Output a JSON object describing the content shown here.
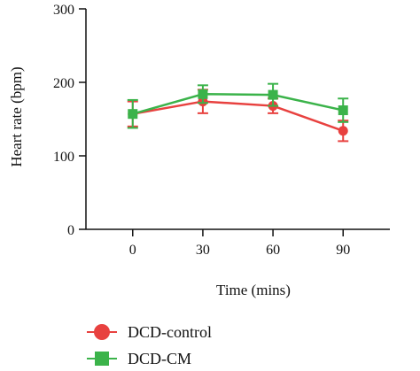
{
  "chart_data": {
    "type": "line",
    "title": "",
    "xlabel": "Time (mins)",
    "ylabel": "Heart rate (bpm)",
    "x": [
      0,
      30,
      60,
      90
    ],
    "xlim": [
      -20,
      110
    ],
    "ylim": [
      0,
      300
    ],
    "yticks": [
      0,
      100,
      200,
      300
    ],
    "xticks": [
      0,
      30,
      60,
      90
    ],
    "grid": false,
    "legend": "bottom-left",
    "series": [
      {
        "name": "DCD-control",
        "color": "#e8413f",
        "marker": "circle",
        "values": [
          157,
          174,
          168,
          134
        ],
        "errors": [
          17,
          16,
          10,
          14
        ]
      },
      {
        "name": "DCD-CM",
        "color": "#3bb34a",
        "marker": "square",
        "values": [
          157,
          184,
          183,
          162
        ],
        "errors": [
          19,
          12,
          15,
          16
        ]
      }
    ]
  }
}
